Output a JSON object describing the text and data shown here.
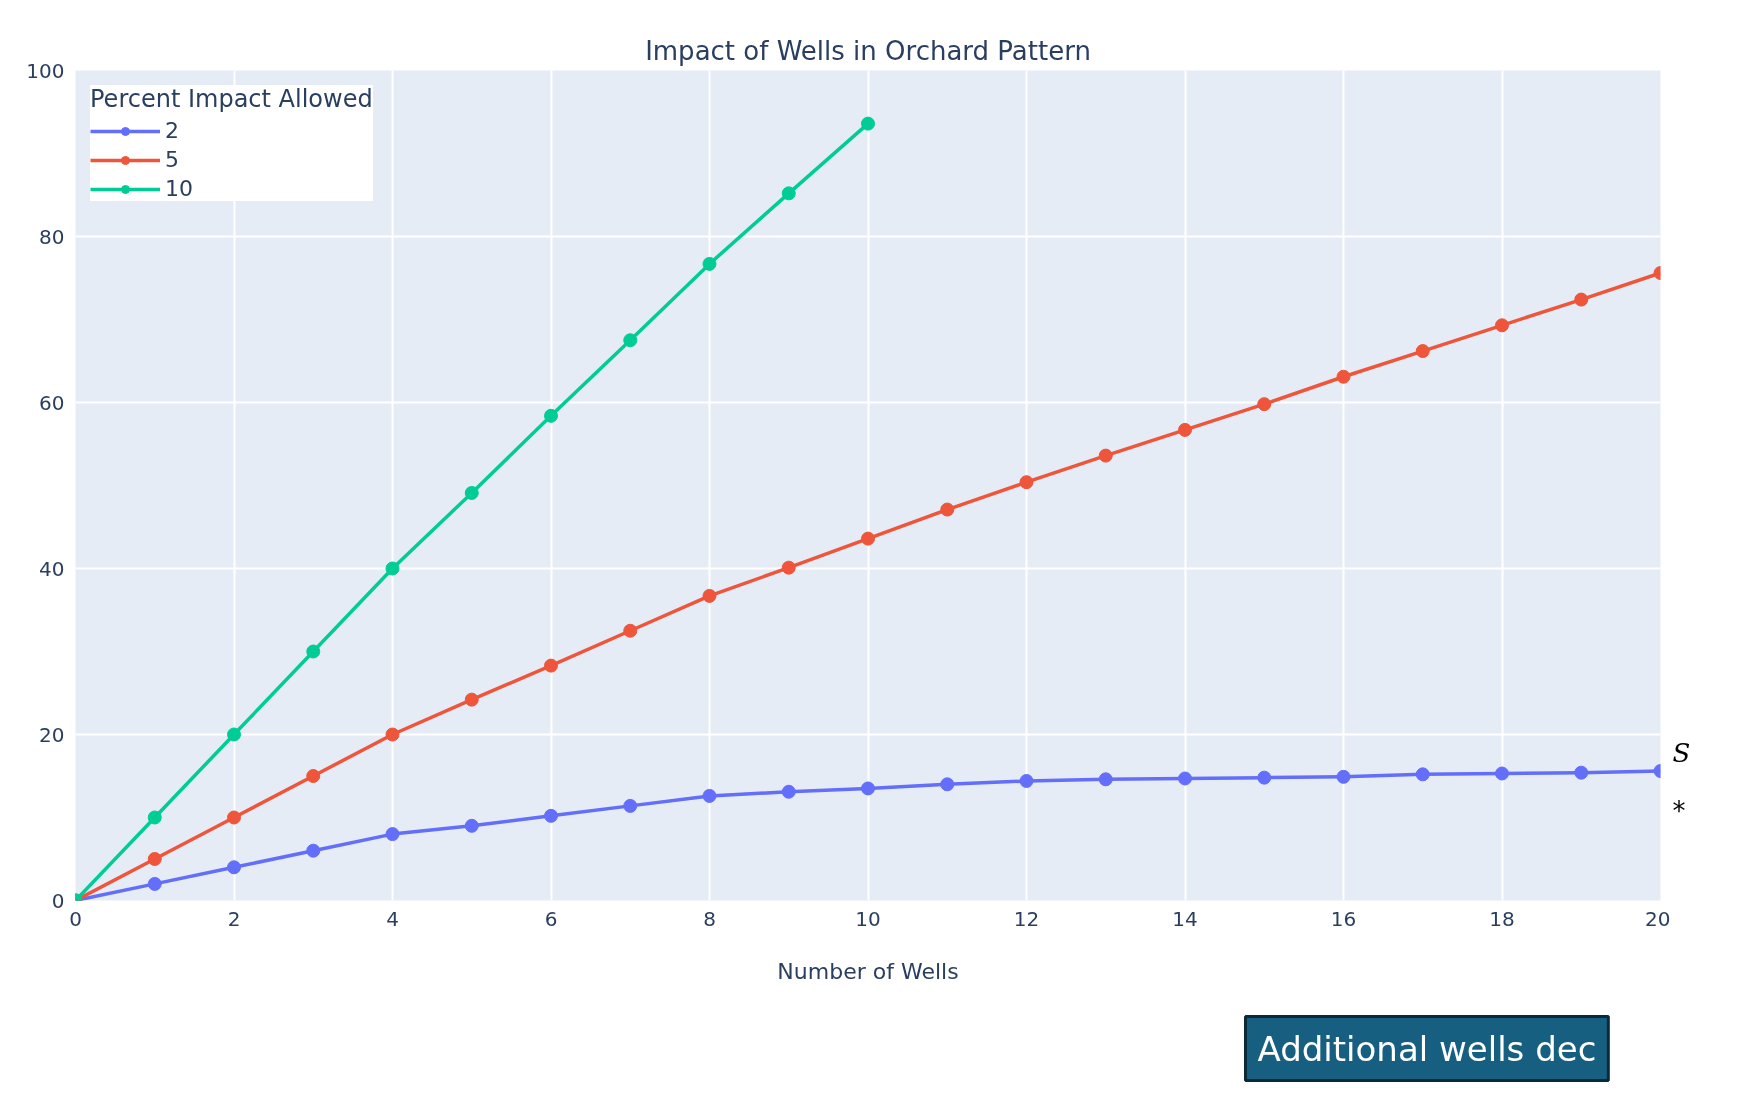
{
  "chart_data": {
    "type": "line",
    "title": "Impact of Wells in Orchard Pattern",
    "xlabel": "Number of Wells",
    "legend_title": "Percent Impact Allowed",
    "x": [
      0,
      1,
      2,
      3,
      4,
      5,
      6,
      7,
      8,
      9,
      10,
      11,
      12,
      13,
      14,
      15,
      16,
      17,
      18,
      19,
      20
    ],
    "series": [
      {
        "name": "2",
        "color": "#636efa",
        "values": [
          0,
          2,
          4,
          6,
          8,
          9.0,
          10.2,
          11.4,
          12.6,
          13.1,
          13.5,
          14.0,
          14.4,
          14.6,
          14.7,
          14.8,
          14.9,
          15.2,
          15.3,
          15.4,
          15.6
        ]
      },
      {
        "name": "5",
        "color": "#ef553b",
        "values": [
          0,
          5,
          10,
          15,
          20,
          24.2,
          28.3,
          32.5,
          36.7,
          40.1,
          43.6,
          47.1,
          50.4,
          53.6,
          56.7,
          59.8,
          63.1,
          66.2,
          69.3,
          72.4,
          75.6
        ]
      },
      {
        "name": "10",
        "color": "#00cc96",
        "values": [
          0,
          10,
          20,
          30,
          40,
          49.1,
          58.4,
          67.5,
          76.7,
          85.2,
          93.6,
          null,
          null,
          null,
          null,
          null,
          null,
          null,
          null,
          null,
          null
        ]
      }
    ],
    "xlim": [
      0,
      20
    ],
    "ylim": [
      0,
      100
    ],
    "xticks": [
      0,
      2,
      4,
      6,
      8,
      10,
      12,
      14,
      16,
      18,
      20
    ],
    "yticks": [
      0,
      20,
      40,
      60,
      80,
      100
    ],
    "grid": true,
    "legend": "top left",
    "marker": "circle",
    "line_style": "solid",
    "annotations": [
      "S",
      "*",
      "Additional wells dec"
    ]
  }
}
